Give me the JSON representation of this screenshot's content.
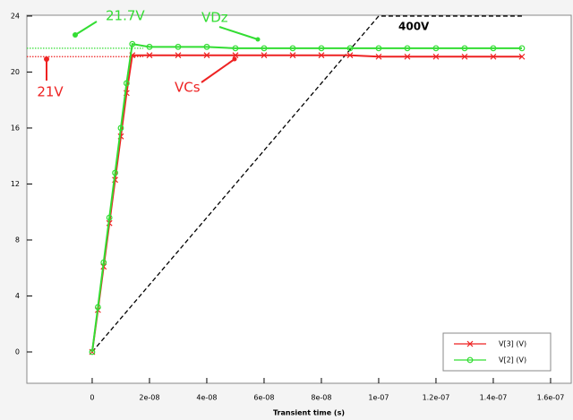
{
  "chart_data": {
    "type": "line",
    "x_label": "Transient time (s)",
    "x": [
      0,
      2e-09,
      4e-09,
      6e-09,
      8e-09,
      1e-08,
      1.2e-08,
      1.4e-08,
      2e-08,
      3e-08,
      4e-08,
      5e-08,
      6e-08,
      7e-08,
      8e-08,
      9e-08,
      1e-07,
      1.1e-07,
      1.2e-07,
      1.3e-07,
      1.4e-07,
      1.5e-07
    ],
    "series": [
      {
        "name": "V[3] (V)",
        "color": "#ee2222",
        "marker": "x",
        "values": [
          0,
          3,
          6.1,
          9.2,
          12.3,
          15.4,
          18.5,
          21.2,
          21.2,
          21.2,
          21.2,
          21.2,
          21.2,
          21.2,
          21.2,
          21.2,
          21.1,
          21.1,
          21.1,
          21.1,
          21.1,
          21.1
        ]
      },
      {
        "name": "V[2] (V)",
        "color": "#33dd33",
        "marker": "o",
        "values": [
          0,
          3.2,
          6.4,
          9.6,
          12.8,
          16,
          19.2,
          22,
          21.8,
          21.8,
          21.8,
          21.7,
          21.7,
          21.7,
          21.7,
          21.7,
          21.7,
          21.7,
          21.7,
          21.7,
          21.7,
          21.7
        ]
      }
    ],
    "ramp": {
      "x": [
        0,
        1e-07,
        1.5e-07
      ],
      "values": [
        0,
        24,
        24
      ],
      "color": "#000000",
      "label": "400V"
    },
    "reference_lines": [
      {
        "value": 21.7,
        "color": "#33dd33",
        "label": "21.7V"
      },
      {
        "value": 21.1,
        "color": "#ee2222",
        "label": "21V"
      }
    ],
    "annotations": [
      {
        "text": "VDz",
        "color": "#33dd33"
      },
      {
        "text": "VCs",
        "color": "#ee2222"
      }
    ],
    "xlim": [
      -2.28e-08,
      1.672e-07
    ],
    "xticks": [
      0,
      {
        "value": 2e-08,
        "label": "2e-08"
      },
      {
        "value": 4e-08,
        "label": "4e-08"
      },
      {
        "value": 6e-08,
        "label": "6e-08"
      },
      {
        "value": 8e-08,
        "label": "8e-08"
      },
      {
        "value": 1e-07,
        "label": "1e-07"
      },
      {
        "value": 1.2e-07,
        "label": "1.2e-07"
      },
      {
        "value": 1.4e-07,
        "label": "1.4e-07"
      },
      {
        "value": 1.6e-07,
        "label": "1.6e-07"
      }
    ],
    "ylim": [
      -2.24,
      24.06
    ],
    "yticks": [
      0,
      4,
      8,
      12,
      16,
      20,
      24
    ],
    "legend": "lower right"
  }
}
